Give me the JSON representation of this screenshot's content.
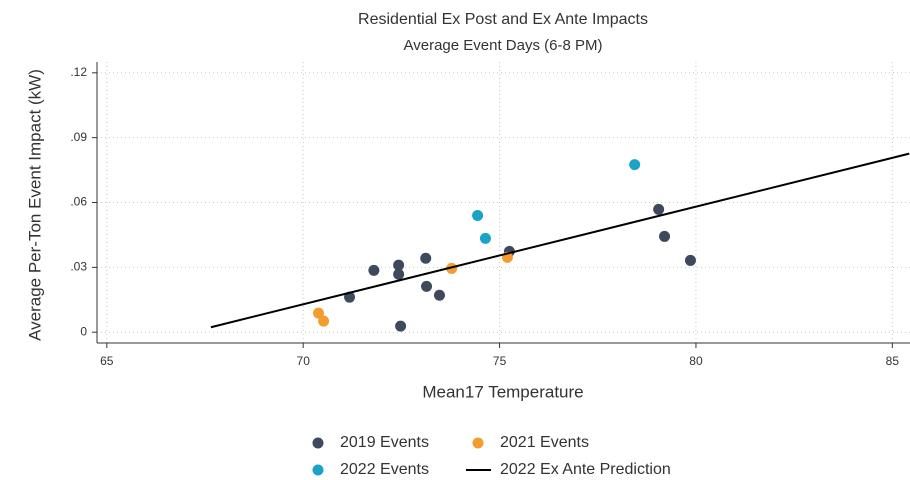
{
  "chart_data": {
    "type": "scatter",
    "title": "Residential Ex Post and Ex Ante Impacts",
    "subtitle": "Average Event Days (6-8 PM)",
    "x_label": "Mean17 Temperature",
    "y_label": "Average Per-Ton Event Impact (kW)",
    "xlim": [
      64.75,
      85.45
    ],
    "ylim": [
      -0.005,
      0.125
    ],
    "xticks": [
      65,
      70,
      75,
      80,
      85
    ],
    "yticks": [
      0,
      {
        "value": 0.03,
        "label": ".03"
      },
      {
        "value": 0.06,
        "label": ".06"
      },
      {
        "value": 0.09,
        "label": ".09"
      },
      {
        "value": 0.12,
        "label": ".12"
      }
    ],
    "grid": true,
    "legend": "bottom",
    "series": [
      {
        "name": "2019 Events",
        "type": "scatter",
        "color": "#3e4a5c",
        "x": [
          71.18,
          71.8,
          72.43,
          72.43,
          72.48,
          73.12,
          73.14,
          73.47,
          75.25,
          79.05,
          79.2,
          79.86
        ],
        "values": [
          0.0162,
          0.0286,
          0.031,
          0.0268,
          0.0028,
          0.0342,
          0.0212,
          0.0171,
          0.0374,
          0.0568,
          0.0443,
          0.0332
        ]
      },
      {
        "name": "2021 Events",
        "type": "scatter",
        "color": "#f39c2f",
        "x": [
          70.39,
          70.52,
          73.78,
          75.2
        ],
        "values": [
          0.0088,
          0.0051,
          0.0295,
          0.0346
        ]
      },
      {
        "name": "2022 Events",
        "type": "scatter",
        "color": "#1aa3c7",
        "x": [
          74.44,
          74.64,
          78.44
        ],
        "values": [
          0.054,
          0.0434,
          0.0775
        ]
      },
      {
        "name": "2022 Ex Ante Prediction",
        "type": "line",
        "color": "#000000",
        "x": [
          67.65,
          85.43
        ],
        "values": [
          0.0023,
          0.0826
        ]
      }
    ]
  }
}
